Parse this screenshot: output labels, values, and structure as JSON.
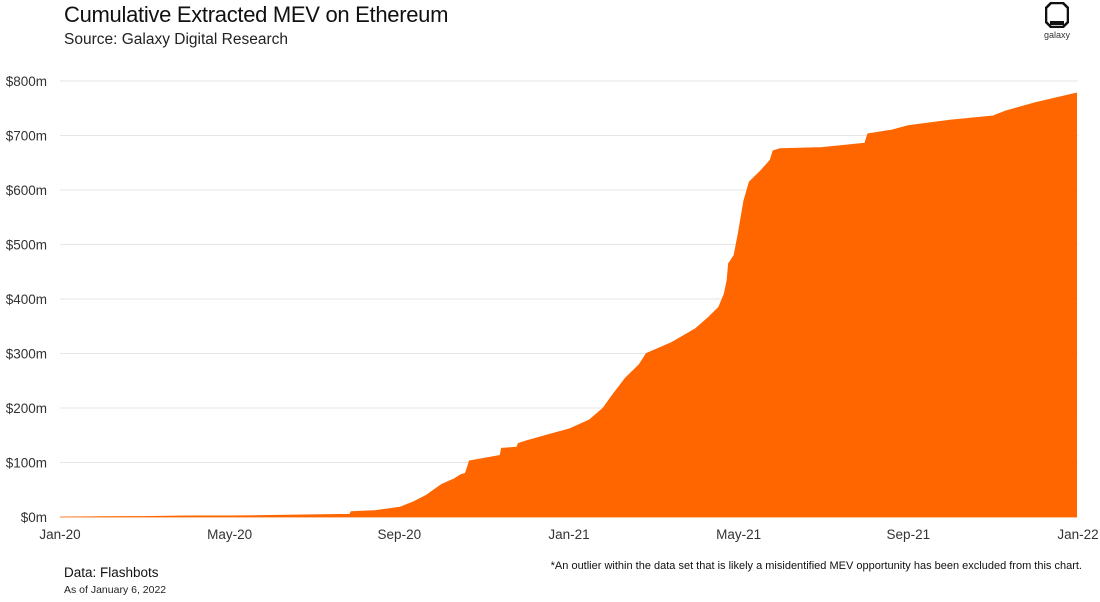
{
  "header": {
    "title": "Cumulative Extracted MEV on Ethereum",
    "subtitle": "Source: Galaxy Digital Research"
  },
  "logo": {
    "word": "galaxy",
    "icon": "galaxy-logo-icon"
  },
  "footer": {
    "source": "Data: Flashbots",
    "as_of": "As of January 6, 2022",
    "footnote": "*An outlier within the data set that is likely a misidentified MEV opportunity has been excluded from this chart."
  },
  "colors": {
    "area": "#ff6600",
    "grid": "#e6e6e6",
    "text": "#111111"
  },
  "chart_data": {
    "type": "area",
    "title": "Cumulative Extracted MEV on Ethereum",
    "subtitle": "Source: Galaxy Digital Research",
    "xlabel": "",
    "ylabel": "",
    "x_unit": "date",
    "y_unit": "USD millions",
    "xlim": [
      "2020-01-01",
      "2022-01-01"
    ],
    "ylim": [
      0,
      800
    ],
    "grid": true,
    "legend": "none",
    "x_ticks": [
      "Jan-20",
      "May-20",
      "Sep-20",
      "Jan-21",
      "May-21",
      "Sep-21",
      "Jan-22"
    ],
    "y_ticks": [
      "$0m",
      "$100m",
      "$200m",
      "$300m",
      "$400m",
      "$500m",
      "$600m",
      "$700m",
      "$800m"
    ],
    "series": [
      {
        "values": [
          [
            "2020-01-01",
            0
          ],
          [
            "2020-02-01",
            0.5
          ],
          [
            "2020-03-01",
            1
          ],
          [
            "2020-04-01",
            2
          ],
          [
            "2020-05-01",
            2
          ],
          [
            "2020-06-01",
            3
          ],
          [
            "2020-07-01",
            4
          ],
          [
            "2020-07-27",
            5
          ],
          [
            "2020-07-28",
            10
          ],
          [
            "2020-08-15",
            12
          ],
          [
            "2020-09-01",
            18
          ],
          [
            "2020-09-10",
            27
          ],
          [
            "2020-09-20",
            40
          ],
          [
            "2020-10-01",
            60
          ],
          [
            "2020-10-10",
            70
          ],
          [
            "2020-10-15",
            78
          ],
          [
            "2020-10-18",
            80
          ],
          [
            "2020-10-21",
            103
          ],
          [
            "2020-11-01",
            108
          ],
          [
            "2020-11-12",
            113
          ],
          [
            "2020-11-13",
            126
          ],
          [
            "2020-11-24",
            128
          ],
          [
            "2020-11-25",
            135
          ],
          [
            "2020-12-01",
            140
          ],
          [
            "2020-12-15",
            150
          ],
          [
            "2021-01-01",
            162
          ],
          [
            "2021-01-15",
            178
          ],
          [
            "2021-01-25",
            200
          ],
          [
            "2021-02-01",
            225
          ],
          [
            "2021-02-10",
            255
          ],
          [
            "2021-02-20",
            280
          ],
          [
            "2021-02-25",
            300
          ],
          [
            "2021-03-15",
            320
          ],
          [
            "2021-04-01",
            345
          ],
          [
            "2021-04-10",
            365
          ],
          [
            "2021-04-18",
            385
          ],
          [
            "2021-04-22",
            410
          ],
          [
            "2021-04-24",
            435
          ],
          [
            "2021-04-25",
            465
          ],
          [
            "2021-04-29",
            480
          ],
          [
            "2021-05-02",
            520
          ],
          [
            "2021-05-06",
            580
          ],
          [
            "2021-05-10",
            615
          ],
          [
            "2021-05-18",
            635
          ],
          [
            "2021-05-25",
            655
          ],
          [
            "2021-05-27",
            672
          ],
          [
            "2021-06-01",
            676
          ],
          [
            "2021-07-01",
            678
          ],
          [
            "2021-08-01",
            686
          ],
          [
            "2021-08-03",
            703
          ],
          [
            "2021-08-20",
            710
          ],
          [
            "2021-09-01",
            718
          ],
          [
            "2021-10-01",
            728
          ],
          [
            "2021-11-01",
            736
          ],
          [
            "2021-11-10",
            745
          ],
          [
            "2021-12-01",
            760
          ],
          [
            "2021-12-31",
            778
          ]
        ]
      }
    ]
  }
}
